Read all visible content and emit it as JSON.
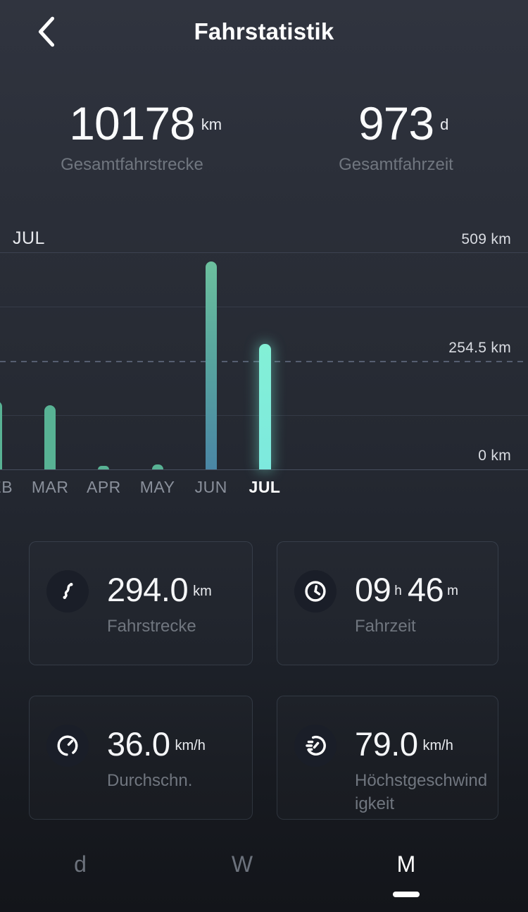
{
  "header": {
    "title": "Fahrstatistik",
    "back_icon": "chevron-left-icon"
  },
  "totals": [
    {
      "value": "10178",
      "unit": "km",
      "label": "Gesamtfahrstrecke"
    },
    {
      "value": "973",
      "unit": "d",
      "label": "Gesamtfahrzeit"
    }
  ],
  "chart_data": {
    "type": "bar",
    "corner_label": "JUL",
    "categories": [
      "FEB",
      "MAR",
      "APR",
      "MAY",
      "JUN",
      "JUL"
    ],
    "values": [
      160,
      150,
      8,
      12,
      488,
      294
    ],
    "unit": "km",
    "selected": "JUL",
    "ylim": [
      0,
      509
    ],
    "ytick_labels": [
      "509 km",
      "254.5 km",
      "0 km"
    ],
    "grid": "4 horizontal quarter lines plus baseline, middle line dashed",
    "legend": "none",
    "bar_styles": [
      "solid",
      "solid",
      "solid",
      "solid",
      "gradient",
      "selected"
    ],
    "colors": {
      "bar_solid": "#58B294",
      "bar_gradient_top": "#6CC09E",
      "bar_gradient_bottom": "#4A86A5",
      "bar_selected": "#7DEEDA"
    }
  },
  "cards": [
    {
      "icon": "route-icon",
      "parts": [
        {
          "value": "294.0",
          "unit": "km"
        }
      ],
      "label": "Fahrstrecke"
    },
    {
      "icon": "clock-icon",
      "parts": [
        {
          "value": "09",
          "unit": "h"
        },
        {
          "value": "46",
          "unit": "m"
        }
      ],
      "label": "Fahrzeit"
    },
    {
      "icon": "speedometer-icon",
      "parts": [
        {
          "value": "36.0",
          "unit": "km/h"
        }
      ],
      "label": "Durchschn."
    },
    {
      "icon": "max-speed-icon",
      "parts": [
        {
          "value": "79.0",
          "unit": "km/h"
        }
      ],
      "label": "Höchstgeschwindigkeit"
    }
  ],
  "tabs": [
    {
      "label": "d",
      "selected": false
    },
    {
      "label": "W",
      "selected": false
    },
    {
      "label": "M",
      "selected": true
    }
  ]
}
